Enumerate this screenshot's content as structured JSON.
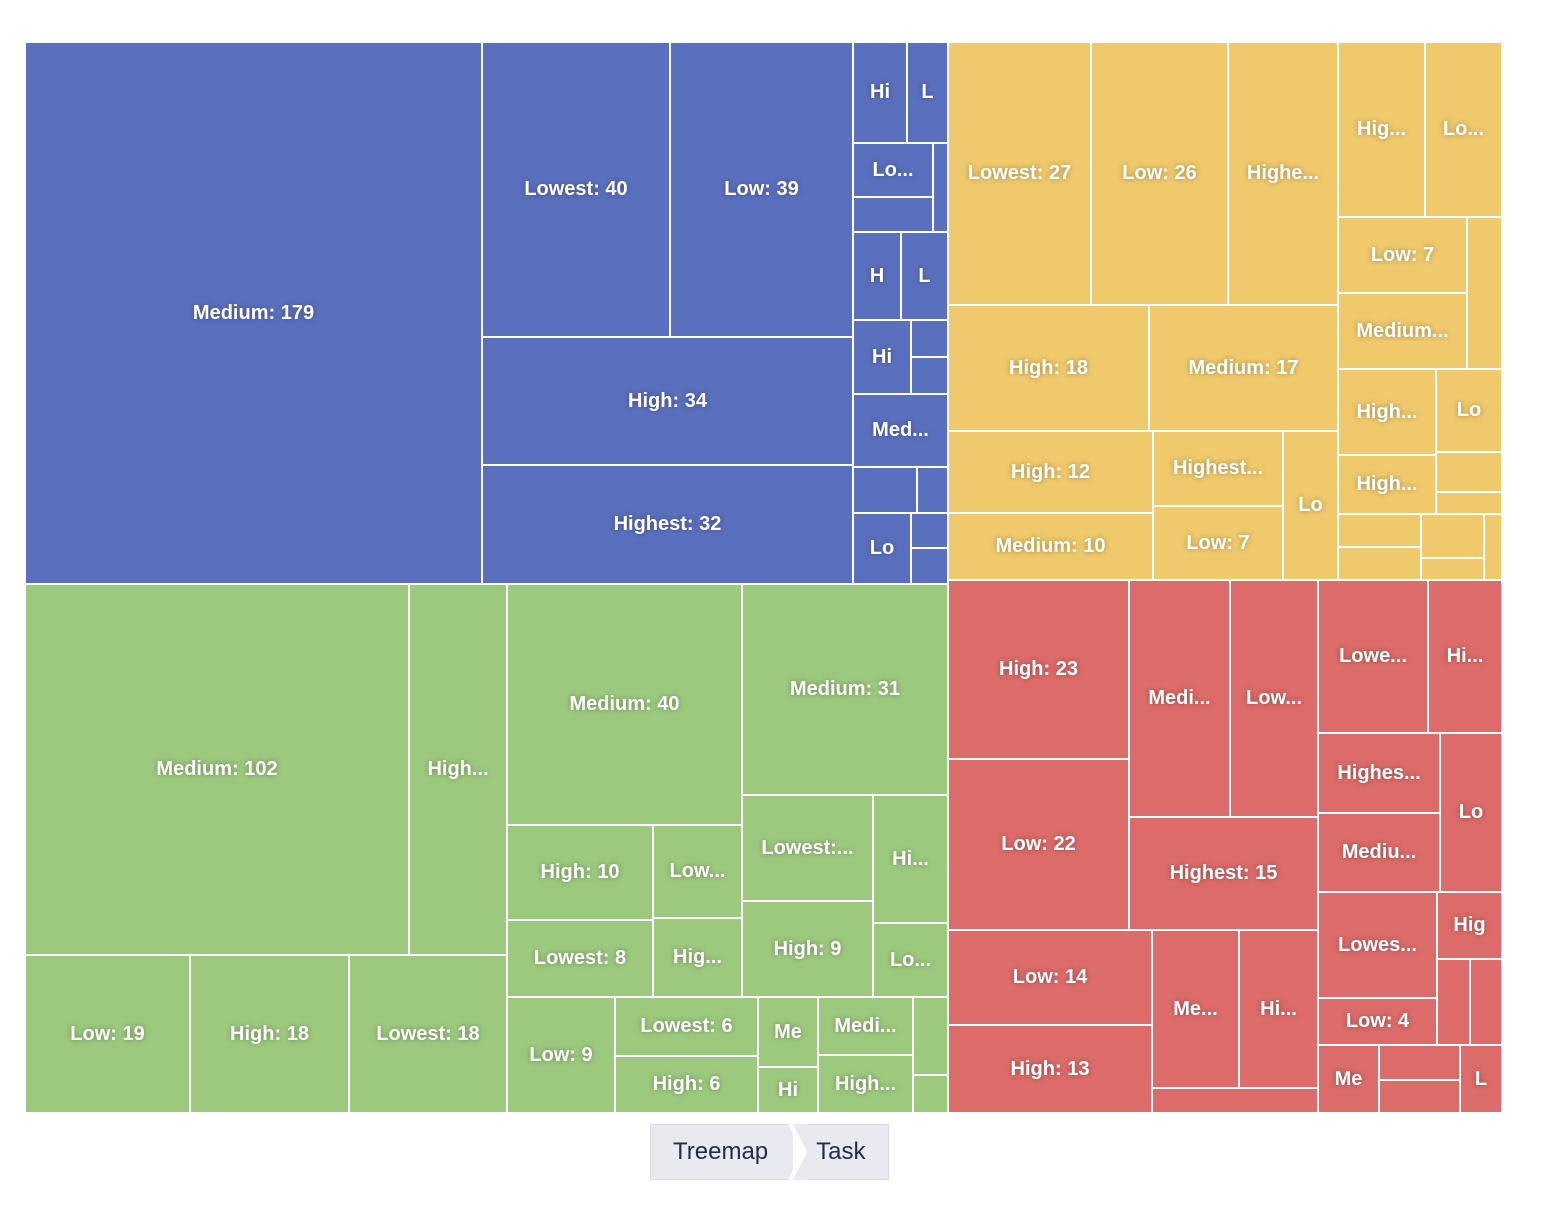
{
  "chart_data": {
    "type": "treemap",
    "title": "",
    "colors": {
      "group1": "#5b6fbf",
      "group2": "#f0c96c",
      "group3": "#9dc97f",
      "group4": "#dd6b69",
      "border": "#ffffff",
      "label": "#ffffff"
    },
    "groups": [
      {
        "name": "group1",
        "color": "#5b6fbf",
        "nodes": [
          {
            "label": "Medium: 179",
            "name": "Medium",
            "value": 179
          },
          {
            "label": "Lowest: 40",
            "name": "Lowest",
            "value": 40
          },
          {
            "label": "Low: 39",
            "name": "Low",
            "value": 39
          },
          {
            "label": "High: 34",
            "name": "High",
            "value": 34
          },
          {
            "label": "Highest: 32",
            "name": "Highest",
            "value": 32
          },
          {
            "label": "Hi",
            "name": "High"
          },
          {
            "label": "L",
            "name": "Low"
          },
          {
            "label": "Lo...",
            "name": "Low"
          },
          {
            "label": "",
            "name": ""
          },
          {
            "label": "",
            "name": ""
          },
          {
            "label": "H",
            "name": "High"
          },
          {
            "label": "L",
            "name": "Low"
          },
          {
            "label": "Hi",
            "name": "High"
          },
          {
            "label": "",
            "name": ""
          },
          {
            "label": "",
            "name": ""
          },
          {
            "label": "Med...",
            "name": "Medium"
          },
          {
            "label": "",
            "name": ""
          },
          {
            "label": "",
            "name": ""
          },
          {
            "label": "Lo",
            "name": "Low"
          },
          {
            "label": "",
            "name": ""
          },
          {
            "label": "",
            "name": ""
          }
        ]
      },
      {
        "name": "group2",
        "color": "#f0c96c",
        "nodes": [
          {
            "label": "Lowest: 27",
            "name": "Lowest",
            "value": 27
          },
          {
            "label": "Low: 26",
            "name": "Low",
            "value": 26
          },
          {
            "label": "Highe...",
            "name": "Highest"
          },
          {
            "label": "Hig...",
            "name": "High"
          },
          {
            "label": "Lo...",
            "name": "Low"
          },
          {
            "label": "Low: 7",
            "name": "Low",
            "value": 7
          },
          {
            "label": "",
            "name": ""
          },
          {
            "label": "Medium...",
            "name": "Medium"
          },
          {
            "label": "High: 18",
            "name": "High",
            "value": 18
          },
          {
            "label": "Medium: 17",
            "name": "Medium",
            "value": 17
          },
          {
            "label": "High...",
            "name": "High"
          },
          {
            "label": "Lo",
            "name": "Low"
          },
          {
            "label": "High: 12",
            "name": "High",
            "value": 12
          },
          {
            "label": "Highest...",
            "name": "Highest"
          },
          {
            "label": "Lo",
            "name": "Low"
          },
          {
            "label": "High...",
            "name": "High"
          },
          {
            "label": "",
            "name": ""
          },
          {
            "label": "",
            "name": ""
          },
          {
            "label": "Medium: 10",
            "name": "Medium",
            "value": 10
          },
          {
            "label": "Low: 7",
            "name": "Low",
            "value": 7
          },
          {
            "label": "",
            "name": ""
          },
          {
            "label": "",
            "name": ""
          },
          {
            "label": "",
            "name": ""
          },
          {
            "label": "",
            "name": ""
          },
          {
            "label": "",
            "name": ""
          }
        ]
      },
      {
        "name": "group3",
        "color": "#9dc97f",
        "nodes": [
          {
            "label": "Medium: 102",
            "name": "Medium",
            "value": 102
          },
          {
            "label": "High...",
            "name": "High"
          },
          {
            "label": "Medium: 40",
            "name": "Medium",
            "value": 40
          },
          {
            "label": "Medium: 31",
            "name": "Medium",
            "value": 31
          },
          {
            "label": "Low: 19",
            "name": "Low",
            "value": 19
          },
          {
            "label": "High: 18",
            "name": "High",
            "value": 18
          },
          {
            "label": "Lowest: 18",
            "name": "Lowest",
            "value": 18
          },
          {
            "label": "High: 10",
            "name": "High",
            "value": 10
          },
          {
            "label": "Low...",
            "name": "Low"
          },
          {
            "label": "Lowest:...",
            "name": "Lowest"
          },
          {
            "label": "Hi...",
            "name": "High"
          },
          {
            "label": "Lowest: 8",
            "name": "Lowest",
            "value": 8
          },
          {
            "label": "Hig...",
            "name": "High"
          },
          {
            "label": "High: 9",
            "name": "High",
            "value": 9
          },
          {
            "label": "Lo...",
            "name": "Low"
          },
          {
            "label": "Low: 9",
            "name": "Low",
            "value": 9
          },
          {
            "label": "Lowest: 6",
            "name": "Lowest",
            "value": 6
          },
          {
            "label": "High: 6",
            "name": "High",
            "value": 6
          },
          {
            "label": "Me",
            "name": "Medium"
          },
          {
            "label": "Hi",
            "name": "High"
          },
          {
            "label": "Medi...",
            "name": "Medium"
          },
          {
            "label": "High...",
            "name": "High"
          },
          {
            "label": "",
            "name": ""
          },
          {
            "label": "",
            "name": ""
          }
        ]
      },
      {
        "name": "group4",
        "color": "#dd6b69",
        "nodes": [
          {
            "label": "High: 23",
            "name": "High",
            "value": 23
          },
          {
            "label": "Low: 22",
            "name": "Low",
            "value": 22
          },
          {
            "label": "Medi...",
            "name": "Medium"
          },
          {
            "label": "Low...",
            "name": "Low"
          },
          {
            "label": "Highest: 15",
            "name": "Highest",
            "value": 15
          },
          {
            "label": "Low: 14",
            "name": "Low",
            "value": 14
          },
          {
            "label": "High: 13",
            "name": "High",
            "value": 13
          },
          {
            "label": "Me...",
            "name": "Medium"
          },
          {
            "label": "Hi...",
            "name": "High"
          },
          {
            "label": "",
            "name": ""
          },
          {
            "label": "Lowe...",
            "name": "Lowest"
          },
          {
            "label": "Hi...",
            "name": "High"
          },
          {
            "label": "Highes...",
            "name": "Highest"
          },
          {
            "label": "Lo",
            "name": "Low"
          },
          {
            "label": "Mediu...",
            "name": "Medium"
          },
          {
            "label": "Lowes...",
            "name": "Lowest"
          },
          {
            "label": "Hig",
            "name": "High"
          },
          {
            "label": "",
            "name": ""
          },
          {
            "label": "",
            "name": ""
          },
          {
            "label": "Low: 4",
            "name": "Low",
            "value": 4
          },
          {
            "label": "Me",
            "name": "Medium"
          },
          {
            "label": "",
            "name": ""
          },
          {
            "label": "",
            "name": ""
          },
          {
            "label": "L",
            "name": "Low"
          }
        ]
      }
    ]
  },
  "breadcrumb": {
    "items": [
      "Treemap",
      "Task"
    ]
  }
}
